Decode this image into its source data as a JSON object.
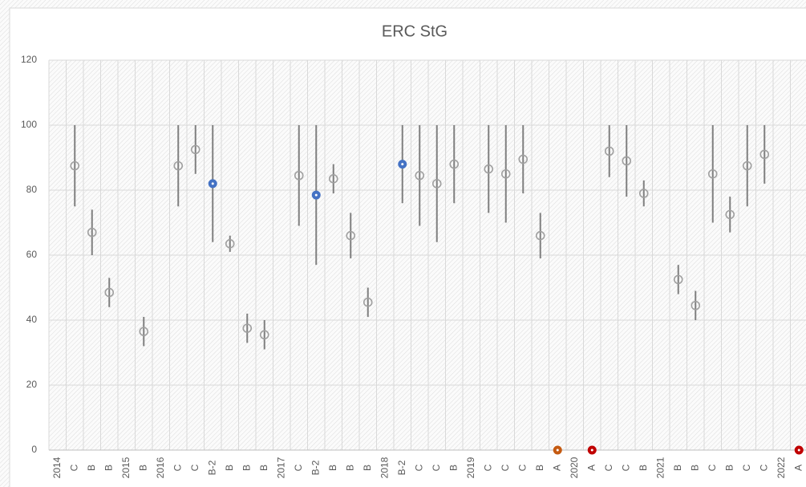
{
  "chart_data": {
    "type": "errorbar-dot",
    "title": "ERC StG",
    "categories": [
      "2014",
      "C",
      "B",
      "B",
      "2015",
      "B",
      "2016",
      "C",
      "C",
      "B-2",
      "B",
      "B",
      "B",
      "2017",
      "C",
      "B-2",
      "B",
      "B",
      "B",
      "2018",
      "B-2",
      "C",
      "C",
      "B",
      "2019",
      "C",
      "C",
      "C",
      "B",
      "A",
      "2020",
      "A",
      "C",
      "C",
      "B",
      "2021",
      "B",
      "B",
      "C",
      "B",
      "C",
      "C",
      "2022",
      "A"
    ],
    "values": [
      null,
      87.5,
      67,
      48.5,
      null,
      36.5,
      null,
      87.5,
      92.5,
      82,
      63.5,
      37.5,
      35.5,
      null,
      84.5,
      78.5,
      83.5,
      66,
      45.5,
      null,
      88,
      84.5,
      82,
      88,
      null,
      86.5,
      85,
      89.5,
      66,
      0,
      null,
      0,
      92,
      89,
      79,
      null,
      52.5,
      44.5,
      85,
      72.5,
      87.5,
      91,
      null,
      0
    ],
    "low": [
      null,
      75,
      60,
      44,
      null,
      32,
      null,
      75,
      85,
      64,
      61,
      33,
      31,
      null,
      69,
      57,
      79,
      59,
      41,
      null,
      76,
      69,
      64,
      76,
      null,
      73,
      70,
      79,
      59,
      null,
      null,
      null,
      84,
      78,
      75,
      null,
      48,
      40,
      70,
      67,
      75,
      82,
      null,
      null
    ],
    "high": [
      null,
      100,
      74,
      53,
      null,
      41,
      null,
      100,
      100,
      100,
      66,
      42,
      40,
      null,
      100,
      100,
      88,
      73,
      50,
      null,
      100,
      100,
      100,
      100,
      null,
      100,
      100,
      100,
      73,
      null,
      null,
      null,
      100,
      100,
      83,
      null,
      57,
      49,
      100,
      78,
      100,
      100,
      null,
      null
    ],
    "color": "#a0a0a0",
    "point_colors": [
      null,
      null,
      null,
      null,
      null,
      null,
      null,
      null,
      null,
      "#4472c4",
      null,
      null,
      null,
      null,
      null,
      "#4472c4",
      null,
      null,
      null,
      null,
      "#4472c4",
      null,
      null,
      null,
      null,
      null,
      null,
      null,
      null,
      "#c55a11",
      null,
      "#c00000",
      null,
      null,
      null,
      null,
      null,
      null,
      null,
      null,
      null,
      null,
      null,
      "#c00000"
    ],
    "ylim": [
      0,
      120
    ],
    "yticks": [
      0,
      20,
      40,
      60,
      80,
      100,
      120
    ],
    "grid": true
  }
}
